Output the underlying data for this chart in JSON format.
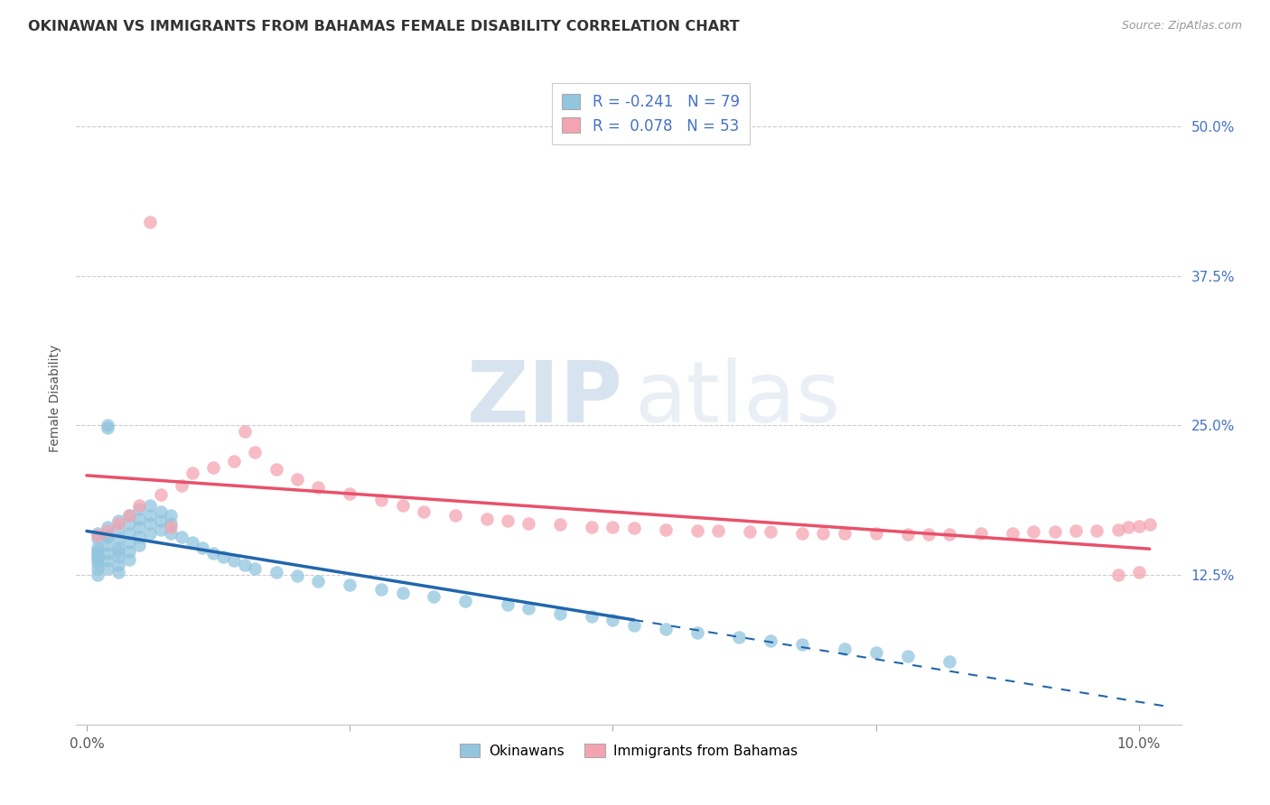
{
  "title": "OKINAWAN VS IMMIGRANTS FROM BAHAMAS FEMALE DISABILITY CORRELATION CHART",
  "source": "Source: ZipAtlas.com",
  "ylabel": "Female Disability",
  "ytick_labels": [
    "12.5%",
    "25.0%",
    "37.5%",
    "50.0%"
  ],
  "ytick_values": [
    0.125,
    0.25,
    0.375,
    0.5
  ],
  "xlim": [
    -0.001,
    0.104
  ],
  "ylim": [
    0.0,
    0.545
  ],
  "watermark_zip": "ZIP",
  "watermark_atlas": "atlas",
  "blue_color": "#92c5de",
  "pink_color": "#f4a4b0",
  "blue_line_color": "#2166ac",
  "pink_line_color": "#e8516a",
  "blue_label": "Okinawans",
  "pink_label": "Immigrants from Bahamas",
  "blue_r": "-0.241",
  "blue_n": "79",
  "pink_r": "0.078",
  "pink_n": "53",
  "okinawan_x": [
    0.001,
    0.001,
    0.001,
    0.001,
    0.001,
    0.001,
    0.001,
    0.001,
    0.001,
    0.001,
    0.002,
    0.002,
    0.002,
    0.002,
    0.002,
    0.002,
    0.002,
    0.002,
    0.002,
    0.003,
    0.003,
    0.003,
    0.003,
    0.003,
    0.003,
    0.003,
    0.003,
    0.004,
    0.004,
    0.004,
    0.004,
    0.004,
    0.004,
    0.005,
    0.005,
    0.005,
    0.005,
    0.005,
    0.006,
    0.006,
    0.006,
    0.006,
    0.007,
    0.007,
    0.007,
    0.008,
    0.008,
    0.008,
    0.009,
    0.01,
    0.011,
    0.012,
    0.013,
    0.014,
    0.015,
    0.016,
    0.018,
    0.02,
    0.022,
    0.025,
    0.028,
    0.03,
    0.033,
    0.036,
    0.04,
    0.042,
    0.045,
    0.048,
    0.05,
    0.052,
    0.055,
    0.058,
    0.062,
    0.065,
    0.068,
    0.072,
    0.075,
    0.078,
    0.082
  ],
  "okinawan_y": [
    0.155,
    0.148,
    0.14,
    0.135,
    0.16,
    0.143,
    0.138,
    0.13,
    0.125,
    0.145,
    0.25,
    0.165,
    0.157,
    0.15,
    0.143,
    0.137,
    0.13,
    0.158,
    0.248,
    0.17,
    0.163,
    0.155,
    0.148,
    0.14,
    0.133,
    0.127,
    0.145,
    0.175,
    0.168,
    0.16,
    0.152,
    0.145,
    0.138,
    0.18,
    0.172,
    0.165,
    0.157,
    0.15,
    0.183,
    0.175,
    0.168,
    0.16,
    0.178,
    0.17,
    0.163,
    0.175,
    0.168,
    0.16,
    0.157,
    0.152,
    0.148,
    0.143,
    0.14,
    0.137,
    0.133,
    0.13,
    0.127,
    0.124,
    0.12,
    0.117,
    0.113,
    0.11,
    0.107,
    0.103,
    0.1,
    0.097,
    0.093,
    0.09,
    0.087,
    0.083,
    0.08,
    0.077,
    0.073,
    0.07,
    0.067,
    0.063,
    0.06,
    0.057,
    0.053
  ],
  "bahamas_x": [
    0.001,
    0.002,
    0.003,
    0.004,
    0.005,
    0.006,
    0.007,
    0.008,
    0.009,
    0.01,
    0.012,
    0.014,
    0.015,
    0.016,
    0.018,
    0.02,
    0.022,
    0.025,
    0.028,
    0.03,
    0.032,
    0.035,
    0.038,
    0.04,
    0.042,
    0.045,
    0.048,
    0.05,
    0.052,
    0.055,
    0.058,
    0.06,
    0.063,
    0.065,
    0.068,
    0.07,
    0.072,
    0.075,
    0.078,
    0.08,
    0.082,
    0.085,
    0.088,
    0.09,
    0.092,
    0.094,
    0.096,
    0.098,
    0.099,
    0.1,
    0.101,
    0.1,
    0.098
  ],
  "bahamas_y": [
    0.158,
    0.162,
    0.168,
    0.175,
    0.183,
    0.42,
    0.192,
    0.165,
    0.2,
    0.21,
    0.215,
    0.22,
    0.245,
    0.228,
    0.213,
    0.205,
    0.198,
    0.193,
    0.188,
    0.183,
    0.178,
    0.175,
    0.172,
    0.17,
    0.168,
    0.167,
    0.165,
    0.165,
    0.164,
    0.163,
    0.162,
    0.162,
    0.161,
    0.161,
    0.16,
    0.16,
    0.16,
    0.16,
    0.159,
    0.159,
    0.159,
    0.16,
    0.16,
    0.161,
    0.161,
    0.162,
    0.162,
    0.163,
    0.165,
    0.166,
    0.167,
    0.127,
    0.125
  ]
}
